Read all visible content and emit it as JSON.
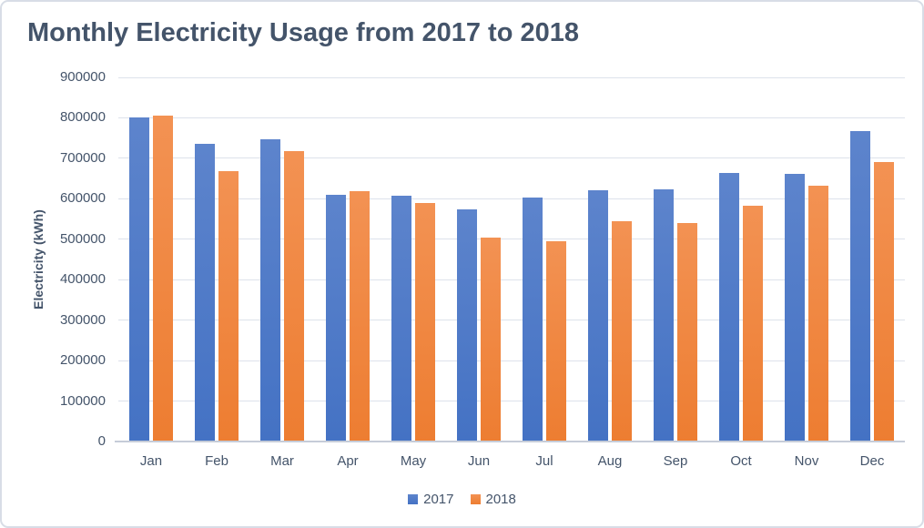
{
  "window": {
    "background": "#ffffff",
    "border_color": "#d8dde6"
  },
  "chart_data": {
    "type": "bar",
    "title": "Monthly Electricity Usage from 2017 to 2018",
    "xlabel": "",
    "ylabel": "Electricity (kWh)",
    "categories": [
      "Jan",
      "Feb",
      "Mar",
      "Apr",
      "May",
      "Jun",
      "Jul",
      "Aug",
      "Sep",
      "Oct",
      "Nov",
      "Dec"
    ],
    "series": [
      {
        "name": "2017",
        "color": "#4472C4",
        "color_light": "#5D84CC",
        "values": [
          800000,
          735000,
          747000,
          609000,
          608000,
          573000,
          602000,
          622000,
          623000,
          664000,
          662000,
          768000
        ]
      },
      {
        "name": "2018",
        "color": "#ED7D31",
        "color_light": "#F39253",
        "values": [
          806000,
          668000,
          717000,
          619000,
          589000,
          504000,
          495000,
          544000,
          540000,
          582000,
          632000,
          690000
        ]
      }
    ],
    "ylim": [
      0,
      900000
    ],
    "yticks": [
      0,
      100000,
      200000,
      300000,
      400000,
      500000,
      600000,
      700000,
      800000,
      900000
    ],
    "grid": true,
    "legend_position": "bottom",
    "title_color": "#44546A",
    "text_color": "#44546A",
    "grid_color": "#dde2eb",
    "baseline_color": "#c6ccd8"
  }
}
